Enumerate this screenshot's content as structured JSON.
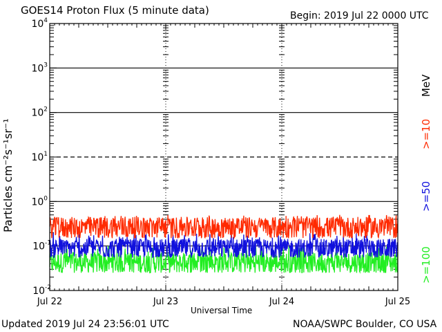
{
  "header": {
    "title": "GOES14 Proton Flux (5 minute data)",
    "begin": "Begin: 2019 Jul 22 0000 UTC"
  },
  "footer": {
    "updated": "Updated 2019 Jul 24 23:56:01 UTC",
    "credit": "NOAA/SWPC Boulder, CO USA"
  },
  "chart_data": {
    "type": "line",
    "title": "GOES14 Proton Flux (5 minute data)",
    "xlabel": "Universal Time",
    "ylabel": "Particles cm⁻²s⁻¹sr⁻¹",
    "yscale": "log",
    "ylim": [
      0.01,
      10000
    ],
    "x_ticks": [
      "Jul 22",
      "Jul 23",
      "Jul 24",
      "Jul 25"
    ],
    "y_ticks": [
      {
        "base": "10",
        "exp": "4"
      },
      {
        "base": "10",
        "exp": "3"
      },
      {
        "base": "10",
        "exp": "2"
      },
      {
        "base": "10",
        "exp": "1"
      },
      {
        "base": "10",
        "exp": "0"
      },
      {
        "base": "10",
        "exp": "-1"
      },
      {
        "base": "10",
        "exp": "-2"
      }
    ],
    "unit_label": "MeV",
    "series": [
      {
        "name": ">=10",
        "color": "#ff2a00",
        "typical": 0.25,
        "low": 0.15,
        "high": 0.5
      },
      {
        "name": ">=50",
        "color": "#1010dd",
        "typical": 0.08,
        "low": 0.055,
        "high": 0.2
      },
      {
        "name": ">=100",
        "color": "#22ee22",
        "typical": 0.04,
        "low": 0.025,
        "high": 0.1
      }
    ],
    "reference_lines": [
      10,
      1000,
      100,
      1
    ]
  }
}
